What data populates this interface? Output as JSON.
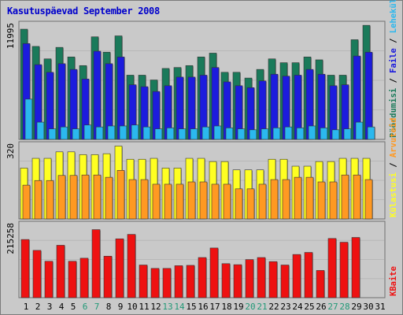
{
  "title": "Kasutuspäevad September 2008",
  "colors": {
    "background": "#c8c8c8",
    "title": "#0000cc",
    "visits": "#1a7a5a",
    "pages": "#1c1cdd",
    "files": "#2bb8ee",
    "hits": "#ffff22",
    "hosts": "#ff9922",
    "kbytes": "#ee1111",
    "weekend_label": "#229977"
  },
  "chart_data": [
    {
      "type": "bar",
      "panel": "top",
      "ymax_label": "11995",
      "ylim": [
        0,
        11995
      ],
      "categories": [
        "1",
        "2",
        "3",
        "4",
        "5",
        "6",
        "7",
        "8",
        "9",
        "10",
        "11",
        "12",
        "13",
        "14",
        "15",
        "16",
        "17",
        "18",
        "19",
        "20",
        "21",
        "22",
        "23",
        "24",
        "25",
        "26",
        "27",
        "28",
        "29",
        "30",
        "31"
      ],
      "weekend_days": [
        "6",
        "7",
        "13",
        "14",
        "20",
        "21",
        "27",
        "28"
      ],
      "side_labels": [
        {
          "text": "Pöördumisi",
          "color": "#1a7a5a"
        },
        {
          "text": "Faile",
          "color": "#1c1cdd"
        },
        {
          "text": "Lehekülgi",
          "color": "#2bb8ee"
        }
      ],
      "separator": " / ",
      "series": [
        {
          "name": "Pöördumisi",
          "color": "#1a7a5a",
          "values": [
            11500,
            9700,
            8400,
            9600,
            8600,
            7700,
            10700,
            9100,
            10800,
            6700,
            6700,
            6200,
            7400,
            7500,
            7700,
            8600,
            9000,
            7000,
            7000,
            6400,
            7300,
            8400,
            8000,
            8000,
            8600,
            8300,
            6700,
            6700,
            10400,
            11900,
            0
          ]
        },
        {
          "name": "Lehekülgi",
          "color": "#1c1cdd",
          "values": [
            10000,
            7800,
            7000,
            7900,
            7300,
            6300,
            9200,
            7900,
            8600,
            5700,
            5500,
            5000,
            5600,
            6500,
            6500,
            6700,
            7500,
            6000,
            5600,
            5400,
            6100,
            6800,
            6600,
            6700,
            7300,
            6800,
            5600,
            5700,
            8700,
            9100,
            0
          ]
        },
        {
          "name": "Faile",
          "color": "#2bb8ee",
          "values": [
            4200,
            1800,
            1100,
            1300,
            1100,
            1500,
            1300,
            1400,
            1400,
            1500,
            1300,
            1100,
            1200,
            1100,
            1100,
            1300,
            1400,
            1200,
            1100,
            1000,
            1100,
            1200,
            1300,
            1200,
            1400,
            1200,
            1000,
            1100,
            1800,
            1300,
            0
          ]
        }
      ]
    },
    {
      "type": "bar",
      "panel": "middle",
      "ymax_label": "320",
      "ylim": [
        0,
        320
      ],
      "side_labels": [
        {
          "text": "Külastusi",
          "color": "#ffff22"
        },
        {
          "text": "Arvuteid",
          "color": "#ff9922"
        }
      ],
      "separator": " / ",
      "series": [
        {
          "name": "Külastusi",
          "color": "#ffff22",
          "values": [
            220,
            262,
            262,
            290,
            290,
            278,
            278,
            282,
            315,
            258,
            258,
            262,
            220,
            220,
            262,
            262,
            248,
            248,
            212,
            212,
            212,
            258,
            258,
            228,
            228,
            248,
            248,
            262,
            262,
            262,
            0
          ]
        },
        {
          "name": "Arvuteid",
          "color": "#ff9922",
          "values": [
            146,
            166,
            166,
            188,
            188,
            190,
            190,
            180,
            210,
            170,
            170,
            150,
            150,
            150,
            160,
            160,
            150,
            150,
            130,
            130,
            150,
            170,
            170,
            180,
            180,
            160,
            160,
            190,
            190,
            170,
            0
          ]
        }
      ]
    },
    {
      "type": "bar",
      "panel": "bottom",
      "ymax_label": "215258",
      "ylim": [
        0,
        215258
      ],
      "side_labels": [
        {
          "text": "KBaite",
          "color": "#ee1111"
        }
      ],
      "series": [
        {
          "name": "KBaite",
          "color": "#ee1111",
          "values": [
            171000,
            139000,
            107000,
            154000,
            107000,
            116000,
            200000,
            122000,
            173000,
            186000,
            96000,
            86000,
            86000,
            94000,
            95000,
            118000,
            146000,
            100000,
            97000,
            112000,
            118000,
            106000,
            96000,
            127000,
            133000,
            80000,
            174000,
            163000,
            177000,
            0,
            0
          ]
        }
      ]
    }
  ]
}
